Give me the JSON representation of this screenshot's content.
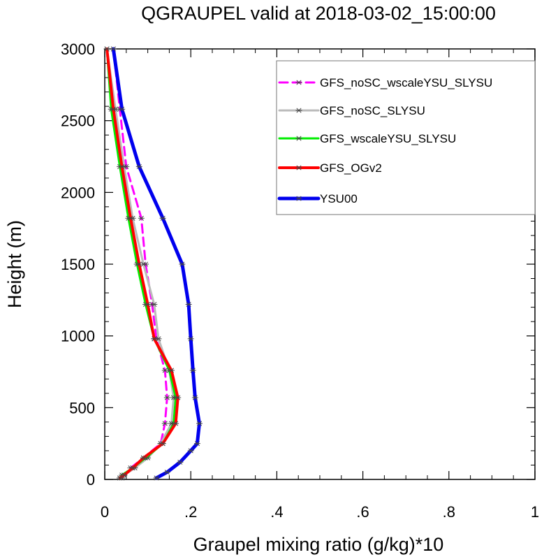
{
  "chart_data": {
    "type": "line",
    "title": "QGRAUPEL valid at 2018-03-02_15:00:00",
    "xlabel": "Graupel mixing ratio (g/kg)*10",
    "ylabel": "Height (m)",
    "xlim": [
      0,
      1
    ],
    "ylim": [
      0,
      3000
    ],
    "x_ticks": [
      0,
      0.2,
      0.4,
      0.6,
      0.8,
      1
    ],
    "x_tick_labels": [
      "0",
      ".2",
      ".4",
      ".6",
      ".8",
      "1"
    ],
    "y_ticks": [
      0,
      500,
      1000,
      1500,
      2000,
      2500,
      3000
    ],
    "y_tick_labels": [
      "0",
      "500",
      "1000",
      "1500",
      "2000",
      "2500",
      "3000"
    ],
    "grid": false,
    "legend_position": "top-right",
    "series": [
      {
        "name": "GFS_noSC_wscaleYSU_SLYSU",
        "color": "#ff00ff",
        "dashed": true,
        "width": 3,
        "points": [
          [
            0.04,
            10
          ],
          [
            0.045,
            30
          ],
          [
            0.06,
            80
          ],
          [
            0.09,
            150
          ],
          [
            0.13,
            250
          ],
          [
            0.14,
            390
          ],
          [
            0.145,
            570
          ],
          [
            0.14,
            760
          ],
          [
            0.12,
            980
          ],
          [
            0.11,
            1220
          ],
          [
            0.095,
            1500
          ],
          [
            0.085,
            1820
          ],
          [
            0.05,
            2180
          ],
          [
            0.035,
            2580
          ],
          [
            0.02,
            3000
          ]
        ]
      },
      {
        "name": "GFS_noSC_SLYSU",
        "color": "#bbbbbb",
        "dashed": false,
        "width": 3,
        "points": [
          [
            0.04,
            10
          ],
          [
            0.045,
            30
          ],
          [
            0.07,
            80
          ],
          [
            0.1,
            150
          ],
          [
            0.13,
            250
          ],
          [
            0.155,
            390
          ],
          [
            0.16,
            570
          ],
          [
            0.15,
            760
          ],
          [
            0.125,
            980
          ],
          [
            0.115,
            1220
          ],
          [
            0.09,
            1500
          ],
          [
            0.065,
            1820
          ],
          [
            0.045,
            2180
          ],
          [
            0.025,
            2580
          ],
          [
            0.005,
            3000
          ]
        ]
      },
      {
        "name": "GFS_wscaleYSU_SLYSU",
        "color": "#00ee00",
        "dashed": false,
        "width": 3,
        "points": [
          [
            0.035,
            10
          ],
          [
            0.04,
            30
          ],
          [
            0.065,
            80
          ],
          [
            0.095,
            150
          ],
          [
            0.135,
            250
          ],
          [
            0.16,
            390
          ],
          [
            0.165,
            570
          ],
          [
            0.15,
            760
          ],
          [
            0.115,
            980
          ],
          [
            0.095,
            1220
          ],
          [
            0.075,
            1500
          ],
          [
            0.055,
            1820
          ],
          [
            0.035,
            2180
          ],
          [
            0.015,
            2580
          ],
          [
            0.005,
            3000
          ]
        ]
      },
      {
        "name": "GFS_OGv2",
        "color": "#ff0000",
        "dashed": false,
        "width": 4,
        "points": [
          [
            0.035,
            10
          ],
          [
            0.045,
            30
          ],
          [
            0.065,
            80
          ],
          [
            0.09,
            150
          ],
          [
            0.135,
            250
          ],
          [
            0.165,
            390
          ],
          [
            0.17,
            570
          ],
          [
            0.155,
            760
          ],
          [
            0.115,
            980
          ],
          [
            0.1,
            1220
          ],
          [
            0.08,
            1500
          ],
          [
            0.06,
            1820
          ],
          [
            0.04,
            2180
          ],
          [
            0.02,
            2580
          ],
          [
            0.005,
            3000
          ]
        ]
      },
      {
        "name": "YSU00",
        "color": "#0000ee",
        "dashed": false,
        "width": 5,
        "points": [
          [
            0.12,
            10
          ],
          [
            0.145,
            50
          ],
          [
            0.175,
            120
          ],
          [
            0.2,
            200
          ],
          [
            0.215,
            250
          ],
          [
            0.22,
            390
          ],
          [
            0.21,
            570
          ],
          [
            0.205,
            760
          ],
          [
            0.2,
            980
          ],
          [
            0.195,
            1220
          ],
          [
            0.18,
            1500
          ],
          [
            0.135,
            1820
          ],
          [
            0.08,
            2180
          ],
          [
            0.04,
            2580
          ],
          [
            0.02,
            3000
          ]
        ]
      }
    ]
  }
}
